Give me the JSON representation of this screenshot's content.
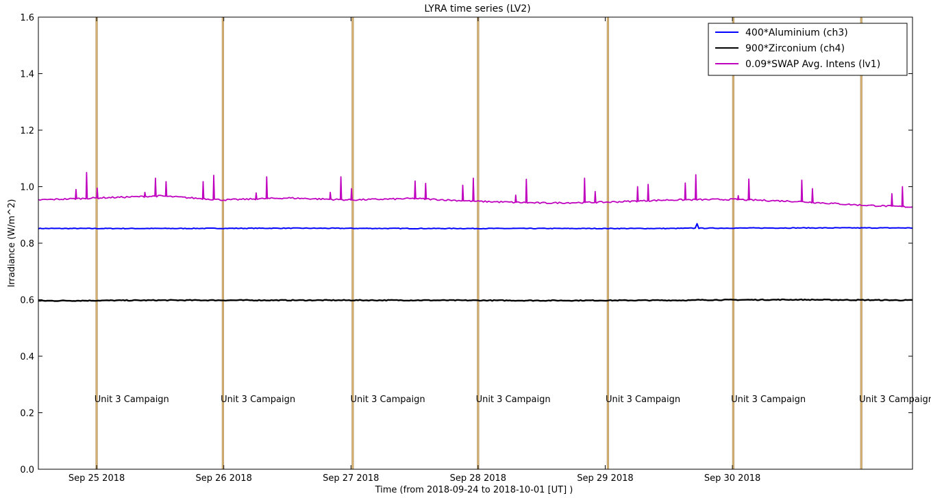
{
  "chart_data": {
    "type": "line",
    "title": "LYRA time series (LV2)",
    "xlabel": "Time (from 2018-09-24 to 2018-10-01 [UT] )",
    "ylabel": "Irradiance (W/m^2)",
    "xlim": [
      "2018-09-24T13:00",
      "2018-10-01T10:00"
    ],
    "ylim": [
      0.0,
      1.6
    ],
    "yticks": [
      "0.0",
      "0.2",
      "0.4",
      "0.6",
      "0.8",
      "1.0",
      "1.2",
      "1.4",
      "1.6"
    ],
    "xticks": [
      {
        "t": "2018-09-25T00:00",
        "label": "Sep 25 2018"
      },
      {
        "t": "2018-09-26T00:00",
        "label": "Sep 26 2018"
      },
      {
        "t": "2018-09-27T00:00",
        "label": "Sep 27 2018"
      },
      {
        "t": "2018-09-28T00:00",
        "label": "Sep 28 2018"
      },
      {
        "t": "2018-09-29T00:00",
        "label": "Sep 29 2018"
      },
      {
        "t": "2018-09-30T00:00",
        "label": "Sep 30 2018"
      }
    ],
    "legend_position": "top-right",
    "grid": false,
    "series": [
      {
        "name": "400*Aluminium (ch3)",
        "color": "#0000ff",
        "points": [
          [
            "2018-09-24T13:00",
            0.852
          ],
          [
            "2018-09-25T12:00",
            0.852
          ],
          [
            "2018-09-26T12:00",
            0.853
          ],
          [
            "2018-09-27T12:00",
            0.852
          ],
          [
            "2018-09-28T12:00",
            0.852
          ],
          [
            "2018-09-29T12:00",
            0.852
          ],
          [
            "2018-09-29T17:10",
            0.853
          ],
          [
            "2018-09-29T17:20",
            0.87
          ],
          [
            "2018-09-29T17:30",
            0.853
          ],
          [
            "2018-09-30T12:00",
            0.854
          ],
          [
            "2018-10-01T10:00",
            0.854
          ]
        ]
      },
      {
        "name": "900*Zirconium (ch4)",
        "color": "#000000",
        "points": [
          [
            "2018-09-24T13:00",
            0.596
          ],
          [
            "2018-09-25T12:00",
            0.598
          ],
          [
            "2018-09-26T12:00",
            0.598
          ],
          [
            "2018-09-27T05:00",
            0.598
          ],
          [
            "2018-09-27T05:10",
            0.615
          ],
          [
            "2018-09-27T05:20",
            0.598
          ],
          [
            "2018-09-27T12:00",
            0.598
          ],
          [
            "2018-09-28T12:00",
            0.597
          ],
          [
            "2018-09-29T17:00",
            0.598
          ],
          [
            "2018-09-29T17:10",
            0.645
          ],
          [
            "2018-09-29T17:20",
            0.599
          ],
          [
            "2018-09-30T12:00",
            0.6
          ],
          [
            "2018-10-01T10:00",
            0.598
          ]
        ]
      },
      {
        "name": "0.09*SWAP Avg. Intens (lv1)",
        "color": "#bf00bf",
        "points": [
          [
            "2018-09-24T13:00",
            0.953
          ],
          [
            "2018-09-25T00:00",
            0.96
          ],
          [
            "2018-09-25T12:00",
            0.967
          ],
          [
            "2018-09-26T00:00",
            0.953
          ],
          [
            "2018-09-26T12:00",
            0.96
          ],
          [
            "2018-09-27T00:00",
            0.953
          ],
          [
            "2018-09-27T12:00",
            0.958
          ],
          [
            "2018-09-28T00:00",
            0.948
          ],
          [
            "2018-09-28T12:00",
            0.942
          ],
          [
            "2018-09-29T00:00",
            0.945
          ],
          [
            "2018-09-29T12:00",
            0.953
          ],
          [
            "2018-09-30T00:00",
            0.955
          ],
          [
            "2018-09-30T12:00",
            0.948
          ],
          [
            "2018-10-01T00:00",
            0.935
          ],
          [
            "2018-10-01T10:00",
            0.928
          ]
        ]
      }
    ],
    "spikes": [
      {
        "t": "2018-09-24T20:00",
        "y": 0.99,
        "series": 2
      },
      {
        "t": "2018-09-24T22:00",
        "y": 1.05,
        "series": 2
      },
      {
        "t": "2018-09-25T00:00",
        "y": 0.995,
        "series": 2
      },
      {
        "t": "2018-09-25T09:00",
        "y": 0.98,
        "series": 2
      },
      {
        "t": "2018-09-25T11:00",
        "y": 1.03,
        "series": 2
      },
      {
        "t": "2018-09-25T13:00",
        "y": 1.018,
        "series": 2
      },
      {
        "t": "2018-09-25T20:00",
        "y": 1.018,
        "series": 2
      },
      {
        "t": "2018-09-25T22:00",
        "y": 1.04,
        "series": 2
      },
      {
        "t": "2018-09-26T06:00",
        "y": 0.978,
        "series": 2
      },
      {
        "t": "2018-09-26T08:00",
        "y": 1.035,
        "series": 2
      },
      {
        "t": "2018-09-26T20:00",
        "y": 0.98,
        "series": 2
      },
      {
        "t": "2018-09-26T22:00",
        "y": 1.035,
        "series": 2
      },
      {
        "t": "2018-09-27T00:00",
        "y": 0.993,
        "series": 2
      },
      {
        "t": "2018-09-27T12:00",
        "y": 1.02,
        "series": 2
      },
      {
        "t": "2018-09-27T14:00",
        "y": 1.012,
        "series": 2
      },
      {
        "t": "2018-09-27T21:00",
        "y": 1.005,
        "series": 2
      },
      {
        "t": "2018-09-27T23:00",
        "y": 1.03,
        "series": 2
      },
      {
        "t": "2018-09-28T07:00",
        "y": 0.97,
        "series": 2
      },
      {
        "t": "2018-09-28T09:00",
        "y": 1.026,
        "series": 2
      },
      {
        "t": "2018-09-28T20:00",
        "y": 1.03,
        "series": 2
      },
      {
        "t": "2018-09-28T22:00",
        "y": 0.983,
        "series": 2
      },
      {
        "t": "2018-09-29T06:00",
        "y": 1.0,
        "series": 2
      },
      {
        "t": "2018-09-29T08:00",
        "y": 1.008,
        "series": 2
      },
      {
        "t": "2018-09-29T15:00",
        "y": 1.013,
        "series": 2
      },
      {
        "t": "2018-09-29T17:00",
        "y": 1.042,
        "series": 2
      },
      {
        "t": "2018-09-30T01:00",
        "y": 0.968,
        "series": 2
      },
      {
        "t": "2018-09-30T03:00",
        "y": 1.027,
        "series": 2
      },
      {
        "t": "2018-09-30T13:00",
        "y": 1.023,
        "series": 2
      },
      {
        "t": "2018-09-30T15:00",
        "y": 0.993,
        "series": 2
      },
      {
        "t": "2018-10-01T06:00",
        "y": 0.975,
        "series": 2
      },
      {
        "t": "2018-10-01T08:00",
        "y": 1.0,
        "series": 2
      }
    ],
    "campaigns": {
      "label": "Unit 3 Campaign",
      "color": "#d2a55a",
      "label_y": 0.25,
      "windows": [
        [
          "2018-09-24T23:50",
          "2018-09-25T00:10"
        ],
        [
          "2018-09-25T23:40",
          "2018-09-26T00:00"
        ],
        [
          "2018-09-27T00:10",
          "2018-09-27T00:30"
        ],
        [
          "2018-09-27T23:50",
          "2018-09-28T00:10"
        ],
        [
          "2018-09-29T00:20",
          "2018-09-29T00:40"
        ],
        [
          "2018-09-30T00:00",
          "2018-09-30T00:20"
        ],
        [
          "2018-10-01T00:10",
          "2018-10-01T00:30"
        ]
      ]
    }
  }
}
